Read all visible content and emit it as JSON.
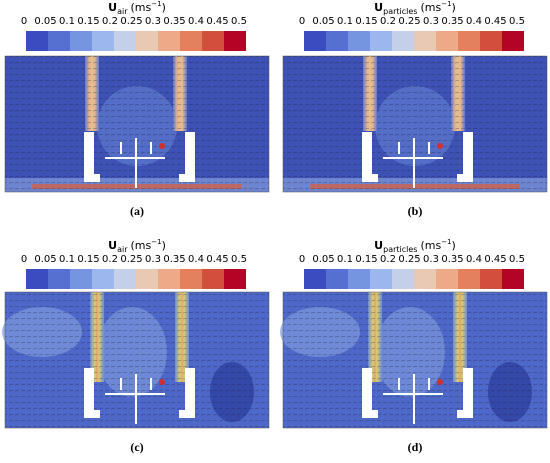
{
  "panels": [
    {
      "symbol": "U",
      "subscript": "air",
      "unit_open": "(ms",
      "exponent": "−1",
      "unit_close": ")",
      "ticks": [
        "0",
        "0.05",
        "0.1",
        "0.15",
        "0.2",
        "0.25",
        "0.3",
        "0.35",
        "0.4",
        "0.45",
        "0.5"
      ],
      "caption": "(a)"
    },
    {
      "symbol": "U",
      "subscript": "particles",
      "unit_open": "(ms",
      "exponent": "−1",
      "unit_close": ")",
      "ticks": [
        "0",
        "0.05",
        "0.1",
        "0.15",
        "0.2",
        "0.25",
        "0.3",
        "0.35",
        "0.4",
        "0.45",
        "0.5"
      ],
      "caption": "(b)"
    },
    {
      "symbol": "U",
      "subscript": "air",
      "unit_open": "(ms",
      "exponent": "−1",
      "unit_close": ")",
      "ticks": [
        "0",
        "0.05",
        "0.1",
        "0.15",
        "0.2",
        "0.25",
        "0.3",
        "0.35",
        "0.4",
        "0.45",
        "0.5"
      ],
      "caption": "(c)"
    },
    {
      "symbol": "U",
      "subscript": "particles",
      "unit_open": "(ms",
      "exponent": "−1",
      "unit_close": ")",
      "ticks": [
        "0",
        "0.05",
        "0.1",
        "0.15",
        "0.2",
        "0.25",
        "0.3",
        "0.35",
        "0.4",
        "0.45",
        "0.5"
      ],
      "caption": "(d)"
    }
  ]
}
